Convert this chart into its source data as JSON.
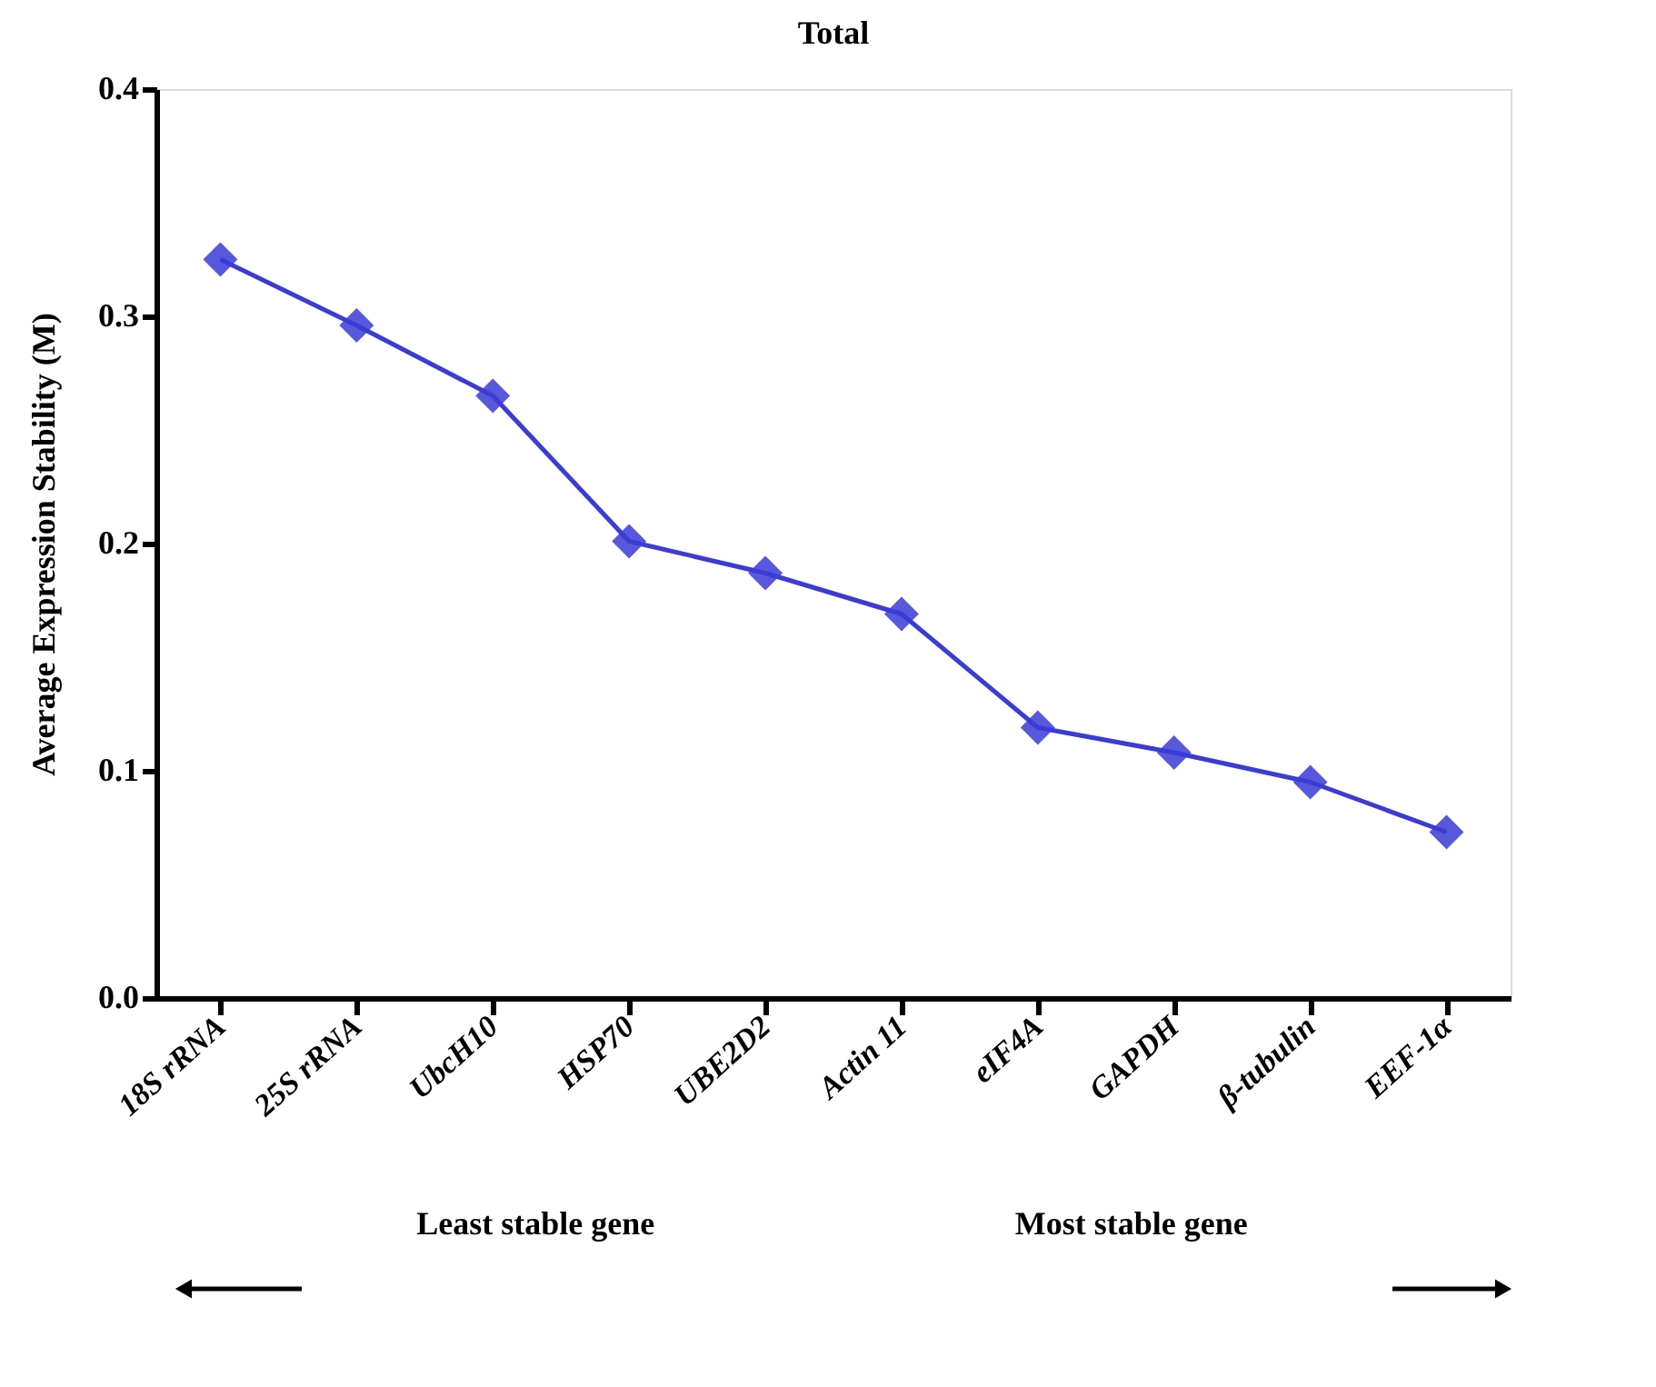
{
  "chart_data": {
    "type": "line",
    "title": "Total",
    "ylabel": "Average Expression Stability (M)",
    "categories": [
      "18S rRNA",
      "25S rRNA",
      "UbcH10",
      "HSP70",
      "UBE2D2",
      "Actin 11",
      "eIF4A",
      "GAPDH",
      "β-tubulin",
      "EEF-1α"
    ],
    "series": [
      {
        "color": "#3b3bd6",
        "values": [
          0.325,
          0.296,
          0.265,
          0.201,
          0.187,
          0.169,
          0.119,
          0.108,
          0.095,
          0.073
        ]
      }
    ],
    "ylim": [
      0,
      0.4
    ],
    "yticks": [
      {
        "value": 0,
        "label": "0.0"
      },
      {
        "value": 0.1,
        "label": "0.1"
      },
      {
        "value": 0.2,
        "label": "0.2"
      },
      {
        "value": 0.3,
        "label": "0.3"
      },
      {
        "value": 0.4,
        "label": "0.4"
      }
    ],
    "marker": "diamond",
    "grid": false,
    "annotations": [
      "Least stable gene",
      "Most stable gene"
    ]
  }
}
